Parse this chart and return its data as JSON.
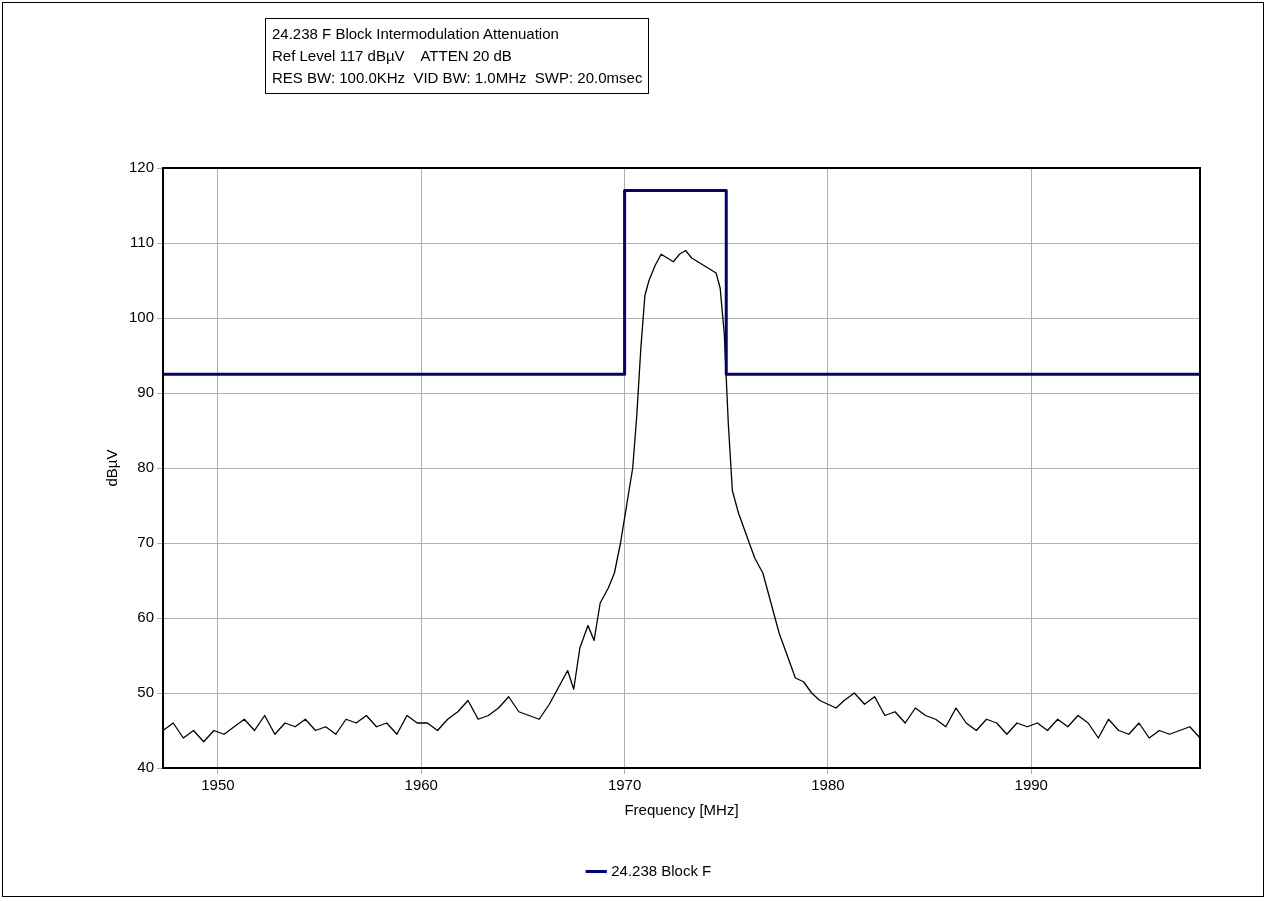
{
  "chart_data": {
    "type": "line",
    "title": "24.238 F Block Intermodulation Attenuation",
    "subtitle": "Ref Level 117 dBµV    ATTEN 20 dB",
    "annotations": [
      "RES BW: 100.0KHz  VID BW: 1.0MHz  SWP: 20.0msec"
    ],
    "xlabel": "Frequency [MHz]",
    "ylabel": "dBµV",
    "xlim": [
      1947.3,
      1998.3
    ],
    "xticks": [
      1950,
      1960,
      1970,
      1980,
      1990
    ],
    "ylim": [
      40,
      120
    ],
    "yticks": [
      40,
      50,
      60,
      70,
      80,
      90,
      100,
      110,
      120
    ],
    "grid": true,
    "legend": "bottom",
    "marker": "none",
    "series": [
      {
        "name": "24.238 Block F",
        "type": "step",
        "color": "#000080",
        "x": [
          1947.3,
          1970,
          1975,
          1998.3
        ],
        "values": [
          92.5,
          117,
          92.5,
          92.5
        ]
      },
      {
        "color": "#000000",
        "x": [
          1947.3,
          1947.8,
          1948.3,
          1948.8,
          1949.3,
          1949.8,
          1950.3,
          1950.8,
          1951.3,
          1951.8,
          1952.3,
          1952.8,
          1953.3,
          1953.8,
          1954.3,
          1954.8,
          1955.3,
          1955.8,
          1956.3,
          1956.8,
          1957.3,
          1957.8,
          1958.3,
          1958.8,
          1959.3,
          1959.8,
          1960.3,
          1960.8,
          1961.3,
          1961.8,
          1962.3,
          1962.8,
          1963.3,
          1963.8,
          1964.3,
          1964.8,
          1965.3,
          1965.8,
          1966.3,
          1966.8,
          1967.2,
          1967.5,
          1967.8,
          1968.2,
          1968.5,
          1968.8,
          1969.2,
          1969.5,
          1969.8,
          1970.1,
          1970.4,
          1970.6,
          1970.8,
          1971.0,
          1971.2,
          1971.5,
          1971.8,
          1972.1,
          1972.4,
          1972.7,
          1973.0,
          1973.3,
          1973.6,
          1973.9,
          1974.2,
          1974.5,
          1974.7,
          1974.9,
          1975.1,
          1975.3,
          1975.6,
          1976.0,
          1976.4,
          1976.8,
          1977.2,
          1977.6,
          1978.0,
          1978.4,
          1978.8,
          1979.2,
          1979.6,
          1980.0,
          1980.4,
          1980.8,
          1981.3,
          1981.8,
          1982.3,
          1982.8,
          1983.3,
          1983.8,
          1984.3,
          1984.8,
          1985.3,
          1985.8,
          1986.3,
          1986.8,
          1987.3,
          1987.8,
          1988.3,
          1988.8,
          1989.3,
          1989.8,
          1990.3,
          1990.8,
          1991.3,
          1991.8,
          1992.3,
          1992.8,
          1993.3,
          1993.8,
          1994.3,
          1994.8,
          1995.3,
          1995.8,
          1996.3,
          1996.8,
          1997.3,
          1997.8,
          1998.3
        ],
        "values": [
          45,
          46,
          44,
          45,
          43.5,
          45,
          44.5,
          45.5,
          46.5,
          45,
          47,
          44.5,
          46,
          45.5,
          46.5,
          45,
          45.5,
          44.5,
          46.5,
          46,
          47,
          45.5,
          46,
          44.5,
          47,
          46,
          46,
          45,
          46.5,
          47.5,
          49,
          46.5,
          47,
          48,
          49.5,
          47.5,
          47,
          46.5,
          48.5,
          51,
          53,
          50.5,
          56,
          59,
          57,
          62,
          64,
          66,
          70,
          75,
          80,
          87,
          96,
          103,
          105,
          107,
          108.5,
          108,
          107.5,
          108.5,
          109,
          108,
          107.5,
          107,
          106.5,
          106,
          104,
          98,
          86,
          77,
          74,
          71,
          68,
          66,
          62,
          58,
          55,
          52,
          51.5,
          50,
          49,
          48.5,
          48,
          49,
          50,
          48.5,
          49.5,
          47,
          47.5,
          46,
          48,
          47,
          46.5,
          45.5,
          48,
          46,
          45,
          46.5,
          46,
          44.5,
          46,
          45.5,
          46,
          45,
          46.5,
          45.5,
          47,
          46,
          44,
          46.5,
          45,
          44.5,
          46,
          44,
          45,
          44.5,
          45,
          45.5,
          44
        ]
      }
    ]
  }
}
